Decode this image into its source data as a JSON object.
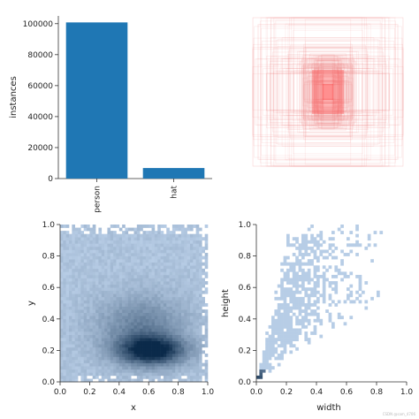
{
  "watermark": "CSDN @sam_4706",
  "chart_data": [
    {
      "type": "bar",
      "categories": [
        "person",
        "hat"
      ],
      "values": [
        100800,
        6800
      ],
      "color": "#1f77b4",
      "xlabel": "",
      "ylabel": "instances",
      "ylim": [
        0,
        105000
      ],
      "yticks": [
        0,
        20000,
        40000,
        60000,
        80000,
        100000
      ],
      "yticks_labels": [
        "0",
        "20000",
        "40000",
        "60000",
        "80000",
        "100000"
      ]
    },
    {
      "type": "scatter",
      "description_style": "overlaid bounding box rectangles centered at (0.5,0.5)",
      "box_color": "#f08080",
      "axes_visible": false
    },
    {
      "type": "heatmap",
      "xlabel": "x",
      "ylabel": "y",
      "xlim": [
        0,
        1
      ],
      "ylim": [
        0,
        1
      ],
      "xticks_labels": [
        "0.0",
        "0.2",
        "0.4",
        "0.6",
        "0.8",
        "1.0"
      ],
      "yticks_labels": [
        "0.0",
        "0.2",
        "0.4",
        "0.6",
        "0.8",
        "1.0"
      ],
      "cmap_low": "#cfe3fb",
      "cmap_high": "#0b2a4a"
    },
    {
      "type": "heatmap",
      "xlabel": "width",
      "ylabel": "height",
      "xlim": [
        0,
        1
      ],
      "ylim": [
        0,
        1
      ],
      "xticks_labels": [
        "0.0",
        "0.2",
        "0.4",
        "0.6",
        "0.8",
        "1.0"
      ],
      "yticks_labels": [
        "0.0",
        "0.2",
        "0.4",
        "0.6",
        "0.8",
        "1.0"
      ],
      "cmap_low": "#cfe3fb",
      "cmap_high": "#0b2a4a"
    }
  ]
}
